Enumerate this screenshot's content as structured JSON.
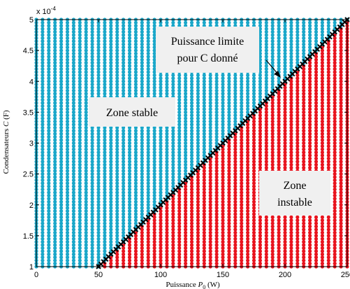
{
  "chart_data": {
    "type": "scatter",
    "title": "",
    "xlabel_prefix": "Puissance ",
    "xlabel_symbol": "P",
    "xlabel_sub": "0",
    "xlabel_suffix": " (W)",
    "ylabel_prefix": "Condensateurs ",
    "ylabel_symbol": "C",
    "ylabel_suffix": " (F)",
    "y_multiplier_base": "x 10",
    "y_multiplier_exp": "-4",
    "xlim": [
      0,
      250
    ],
    "ylim": [
      1,
      5
    ],
    "x_ticks": [
      0,
      50,
      100,
      150,
      200,
      250
    ],
    "y_ticks": [
      1,
      1.5,
      2,
      2.5,
      3,
      3.5,
      4,
      4.5,
      5
    ],
    "x_tick_labels": [
      "0",
      "50",
      "100",
      "150",
      "200",
      "250"
    ],
    "y_tick_labels": [
      "1",
      "1.5",
      "2",
      "2.5",
      "3",
      "3.5",
      "4",
      "4.5",
      "5"
    ],
    "grid": false,
    "series": [
      {
        "role": "stable",
        "color": "#1aa7c9",
        "x_start": 0,
        "x_step": 5,
        "x_end": 250,
        "y_start": 1,
        "y_step": 0.05,
        "y_end": 5
      },
      {
        "role": "unstable",
        "color": "#e8141e",
        "x_step": 5,
        "y_step": 0.05
      },
      {
        "role": "limit",
        "color": "#000000",
        "marker": "x",
        "x": [
          50,
          250
        ],
        "y": [
          1,
          5
        ]
      }
    ],
    "annotations": [
      {
        "id": "stable",
        "lines": [
          "Zone stable"
        ]
      },
      {
        "id": "unstable",
        "lines": [
          "Zone",
          "instable"
        ]
      },
      {
        "id": "limit",
        "lines": [
          "Puissance limite",
          "pour C donné"
        ]
      }
    ]
  }
}
